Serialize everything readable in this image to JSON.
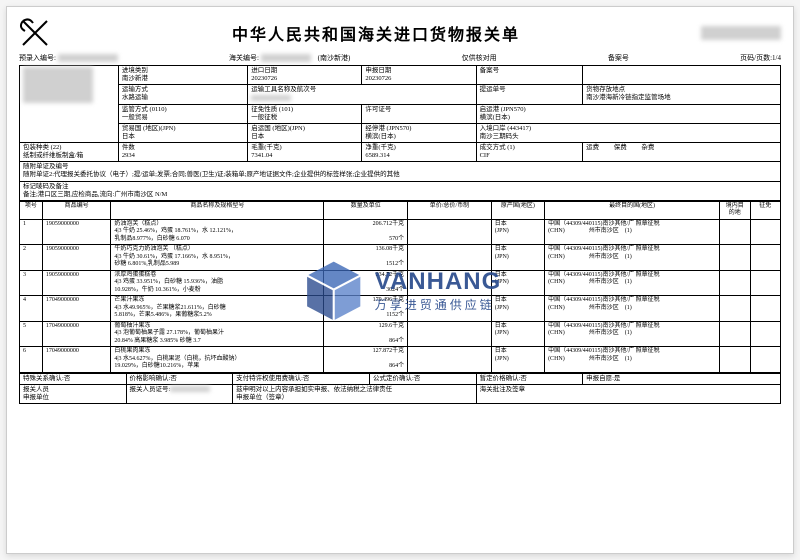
{
  "doc": {
    "title": "中华人民共和国海关进口货物报关单",
    "preentry_label": "预录入编号:",
    "customs_label": "海关编号:",
    "port_note": "(南沙新港)",
    "usage_note": "仅供核对用",
    "record_label": "备案号",
    "page_label": "页码/页数:",
    "page_value": "1/4"
  },
  "head": {
    "entry_type_lbl": "进境类别",
    "entry_type": "南沙新港",
    "import_date_lbl": "进口日期",
    "import_date": "20230726",
    "decl_date_lbl": "申报日期",
    "decl_date": "20230726",
    "transport_lbl": "运输方式",
    "transport": "水路运输",
    "tool_lbl": "运输工具名称及航次号",
    "bill_lbl": "提运单号",
    "storage_lbl": "货物存放地点",
    "storage": "南沙港海新冷链指定监管场地",
    "sup_lbl": "监管方式 (0110)",
    "sup": "一般贸易",
    "exempt_lbl": "征免性质 (101)",
    "exempt": "一般征税",
    "permit_lbl": "许可证号",
    "depart_port_lbl": "启运港 (JPN570)",
    "depart_port": "横滨(日本)",
    "depart_ctry_lbl": "启运国 (地区)(JPN)",
    "depart_ctry": "日本",
    "trade_ctry_lbl": "贸易国 (地区)(JPN)",
    "trade_ctry": "日本",
    "transit_lbl": "经停港 (JPN570)",
    "transit": "横滨(日本)",
    "entry_port_lbl": "入境口岸 (443417)",
    "entry_port": "南沙三期码头",
    "pack_lbl": "包装种类 (22)",
    "pack": "纸制或纤维板制盒/箱",
    "pieces_lbl": "件数",
    "pieces": "2934",
    "gross_lbl": "毛重(千克)",
    "gross": "7341.04",
    "net_lbl": "净重(千克)",
    "net": "6589.314",
    "terms_lbl": "成交方式 (1)",
    "terms": "CIF",
    "freight_lbl": "运费",
    "insur_lbl": "保费",
    "misc_lbl": "杂费",
    "attach_lbl": "随附单证及编号",
    "attach": "随附单证2:代理报关委托协议（电子）;提/运单;发票;合同;兽医(卫生)证;装箱单;原产地证据文件;企业提供的标签样张;企业提供的其他",
    "remark_lbl": "标记唛码及备注",
    "remark": "备注;港口区三期,应检商品,流向:广州市南沙区 N/M"
  },
  "cols": {
    "no": "项号",
    "code": "商品编号",
    "name": "商品名称及规格型号",
    "qty": "数量及单位",
    "price": "单价/总价/币制",
    "origin": "原产国(地区)",
    "dest": "最终目的国(地区)",
    "dom": "境内目的地",
    "exempt": "征免"
  },
  "items": [
    {
      "no": "1",
      "code": "19059000000",
      "name": "奶油泡芙（糕点）\n4|3 牛奶 25.46%，鸡蛋 18.761%，水 12.121%，\n乳制品8.977%，白砂糖 6.070",
      "qty": "206.712千克\n\n570个",
      "origin": "日本\n(JPN)",
      "dest": "中国（44309/440115)南沙其他/广 照章征税\n(CHN)                州市南沙区    (1)"
    },
    {
      "no": "2",
      "code": "19059000000",
      "name": "牛奶巧克力奶油泡芙 （糕点）\n4|3 牛奶 30.61%，鸡蛋 17.166%，水 8.951%，\n砂糖 6.801%,乳制品5.989",
      "qty": "136.08千克\n\n1512个",
      "origin": "日本\n(JPN)",
      "dest": "中国（44309/440115)南沙其他/广 照章征税\n(CHN)                州市南沙区    (1)"
    },
    {
      "no": "3",
      "code": "19059000000",
      "name": "浓厚鸡蛋蛋糕卷\n4|3 鸡蛋 33.951%，白砂糖 15.936%，油脂\n10.928%，牛奶 10.361%，小麦粉",
      "qty": "234.72千克\n\n3024个",
      "origin": "日本\n(JPN)",
      "dest": "中国（44309/440115)南沙其他/广 照章征税\n(CHN)                州市南沙区    (1)"
    },
    {
      "no": "4",
      "code": "17049000000",
      "name": "芒果汁果冻\n4|3 水49.965%，芒果糖浆21.611%，白砂糖\n5.818%，芒果5.486%，果葡糖浆5.2%",
      "qty": "179.496千克\n\n1152个",
      "origin": "日本\n(JPN)",
      "dest": "中国（44309/440115)南沙其他/广 照章征税\n(CHN)                州市南沙区    (1)"
    },
    {
      "no": "5",
      "code": "17049000000",
      "name": "葡萄柚汁果冻\n4|3 泡葡萄柚果子露 27.178%，葡萄柚果汁\n20.84% 高果糖浆 3.985% 砂糖 3.7",
      "qty": "129.6千克\n\n864个",
      "origin": "日本\n(JPN)",
      "dest": "中国（44309/440115)南沙其他/广 照章征税\n(CHN)                州市南沙区    (1)"
    },
    {
      "no": "6",
      "code": "17049000000",
      "name": "白桃果肉果冻\n4|3 水54.627%，白桃果泥（白桃，抗坏血酸钠）\n19.029%，白砂糖10.216%，苹果",
      "qty": "127.872千克\n\n864个",
      "origin": "日本\n(JPN)",
      "dest": "中国（44309/440115)南沙其他/广 照章征税\n(CHN)                州市南沙区    (1)"
    }
  ],
  "footer": {
    "special_lbl": "特殊关系确认:",
    "special": "否",
    "price_lbl": "价格影响确认:",
    "price": "否",
    "pay_lbl": "支付特许权使用费确认:",
    "pay": "否",
    "formula_lbl": "公式定价确认:",
    "formula": "否",
    "prov_lbl": "暂定价格确认:",
    "prov": "否",
    "self_lbl": "申报自愿:",
    "self": "是",
    "declarer_lbl": "报关人员",
    "unit_lbl": "申报单位",
    "certno_lbl": "报关人员证号:",
    "declare_stmt": "兹申明对以上内容承担如实申报、依法纳税之法律责任",
    "decl_unit_lbl": "申报单位（签章）",
    "customs_sign_lbl": "海关批注及签章"
  },
  "watermark": {
    "en": "VANHANG",
    "cn": "万享进贸通供应链"
  }
}
